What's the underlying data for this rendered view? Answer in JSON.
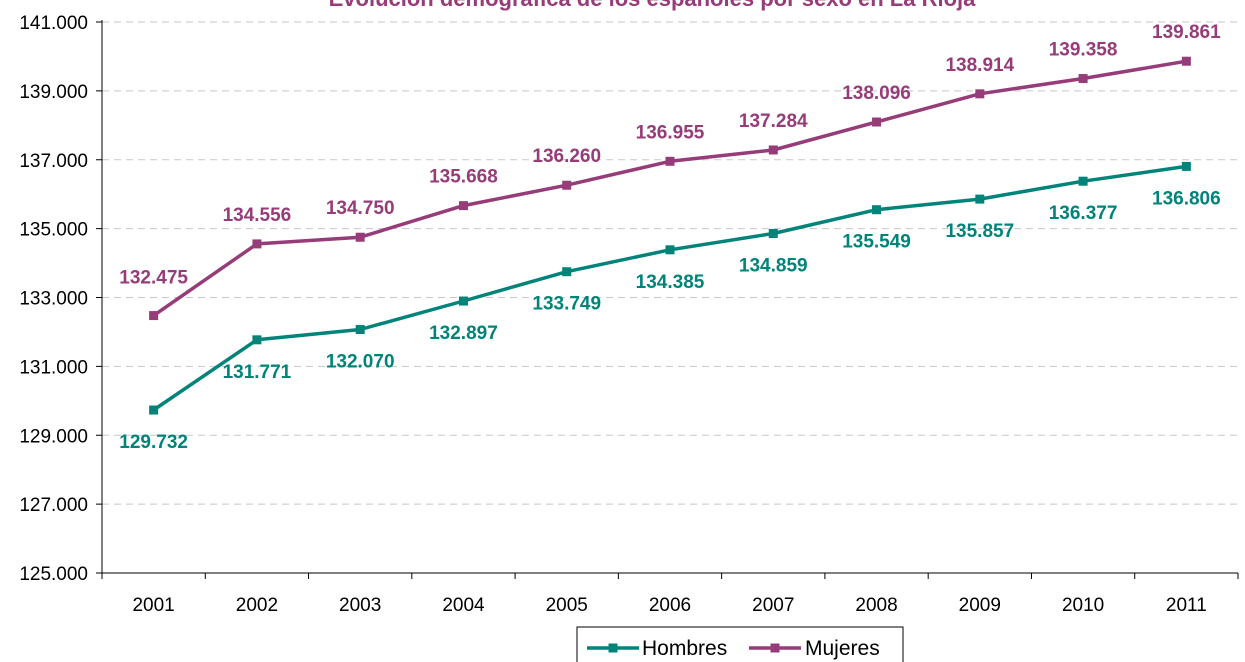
{
  "chart_data": {
    "type": "line",
    "title": "Evolución demográfica de los españoles por sexo en La Rioja",
    "xlabel": "",
    "ylabel": "",
    "categories": [
      "2001",
      "2002",
      "2003",
      "2004",
      "2005",
      "2006",
      "2007",
      "2008",
      "2009",
      "2010",
      "2011"
    ],
    "ylim": [
      125000,
      141000
    ],
    "yticks": [
      125000,
      127000,
      129000,
      131000,
      133000,
      135000,
      137000,
      139000,
      141000
    ],
    "ytick_labels": [
      "125.000",
      "127.000",
      "129.000",
      "131.000",
      "133.000",
      "135.000",
      "137.000",
      "139.000",
      "141.000"
    ],
    "grid": "horizontal dashed",
    "legend_position": "bottom",
    "series": [
      {
        "name": "Hombres",
        "color": "#00847a",
        "values": [
          129732,
          131771,
          132070,
          132897,
          133749,
          134385,
          134859,
          135549,
          135857,
          136377,
          136806
        ],
        "labels": [
          "129.732",
          "131.771",
          "132.070",
          "132.897",
          "133.749",
          "134.385",
          "134.859",
          "135.549",
          "135.857",
          "136.377",
          "136.806"
        ]
      },
      {
        "name": "Mujeres",
        "color": "#963c78",
        "values": [
          132475,
          134556,
          134750,
          135668,
          136260,
          136955,
          137284,
          138096,
          138914,
          139358,
          139861
        ],
        "labels": [
          "132.475",
          "134.556",
          "134.750",
          "135.668",
          "136.260",
          "136.955",
          "137.284",
          "138.096",
          "138.914",
          "139.358",
          "139.861"
        ]
      }
    ]
  }
}
